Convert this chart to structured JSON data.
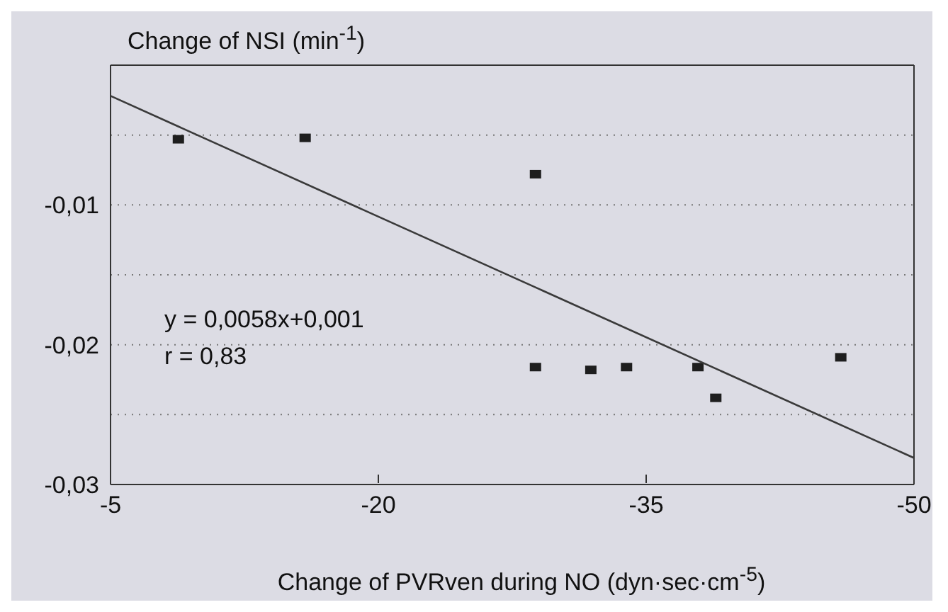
{
  "chart_data": {
    "type": "scatter",
    "ylabel": "Change of NSI (min$^{-1}$)",
    "xlabel": "Change of PVRven during NO (dyn·sec·cm$^{-5}$)",
    "xlim": [
      -5,
      -50
    ],
    "xticks": [
      -5,
      -20,
      -35,
      -50
    ],
    "ylim": [
      -0.03,
      0
    ],
    "yticks": [
      {
        "value": -0.03,
        "label": "-0,03"
      },
      {
        "value": -0.025,
        "label": null
      },
      {
        "value": -0.02,
        "label": "-0,02"
      },
      {
        "value": -0.015,
        "label": null
      },
      {
        "value": -0.01,
        "label": "-0,01"
      },
      {
        "value": -0.005,
        "label": null
      }
    ],
    "grid": "y",
    "marker": "square",
    "annotations": [
      "y = 0,0058x+0,001",
      "r = 0,83"
    ],
    "series": [
      {
        "color": "#1e1e1e",
        "x": [
          -8.8,
          -15.9,
          -28.8,
          -28.8,
          -31.9,
          -33.9,
          -37.9,
          -38.9,
          -45.9
        ],
        "values": [
          -0.0053,
          -0.0052,
          -0.0078,
          -0.0216,
          -0.0218,
          -0.0216,
          -0.0216,
          -0.0238,
          -0.0209
        ]
      },
      {
        "type": "line",
        "color": "#3a3a3a",
        "x": [
          -5,
          -50
        ],
        "values": [
          -0.0022,
          -0.0281
        ],
        "marker": "none",
        "line_style": "solid"
      }
    ]
  }
}
